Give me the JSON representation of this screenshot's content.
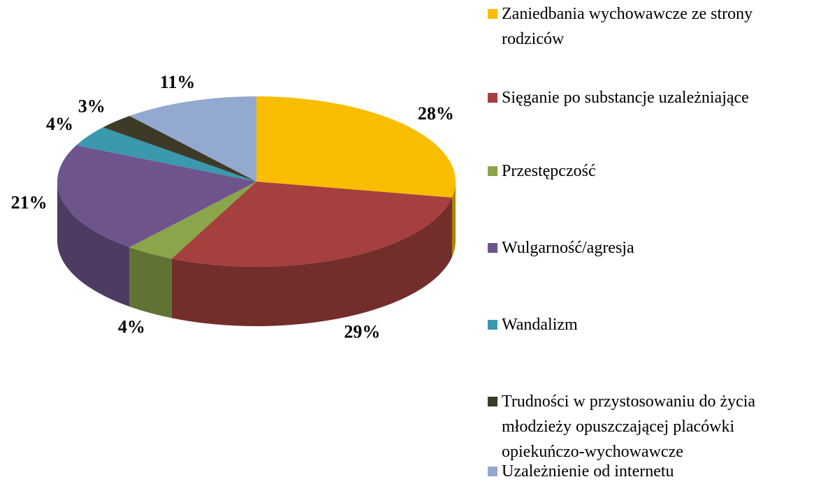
{
  "chart_data": {
    "type": "pie",
    "categories": [
      "Zaniedbania wychowawcze ze strony rodziców",
      "Sięganie po substancje uzależniające",
      "Przestępczość",
      "Wulgarność/agresja",
      "Wandalizm",
      "Trudności w przystosowaniu do życia młodzieży opuszczającej placówki opiekuńczo-wychowawcze",
      "Uzależnienie od internetu"
    ],
    "values": [
      28,
      29,
      4,
      21,
      4,
      3,
      11
    ],
    "value_labels": [
      "28%",
      "29%",
      "4%",
      "21%",
      "4%",
      "3%",
      "11%"
    ],
    "colors": [
      "#f9bd00",
      "#a5403e",
      "#8aa54a",
      "#6e548c",
      "#3b99ad",
      "#3d3a27",
      "#93a9cf"
    ],
    "legend": "right"
  }
}
